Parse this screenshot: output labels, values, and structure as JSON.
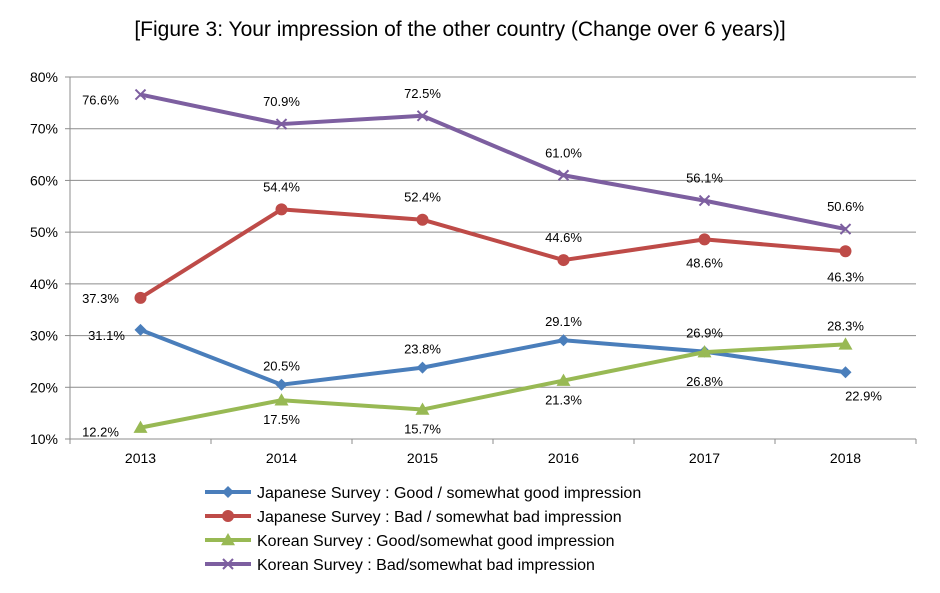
{
  "chart_data": {
    "type": "line",
    "title": "[Figure 3: Your impression of the other country (Change over 6 years)]",
    "xlabel": "",
    "ylabel": "",
    "categories": [
      "2013",
      "2014",
      "2015",
      "2016",
      "2017",
      "2018"
    ],
    "y_ticks": [
      "10%",
      "20%",
      "30%",
      "40%",
      "50%",
      "60%",
      "70%",
      "80%"
    ],
    "ylim": [
      10,
      80
    ],
    "grid": true,
    "legend_position": "bottom",
    "series": [
      {
        "name": "Japanese Survey : Good / somewhat good impression",
        "values": [
          31.1,
          20.5,
          23.8,
          29.1,
          26.9,
          22.9
        ],
        "labels": [
          "31.1%",
          "20.5%",
          "23.8%",
          "29.1%",
          "26.9%",
          "22.9%"
        ],
        "color": "#4a7ebb",
        "marker": "diamond"
      },
      {
        "name": "Japanese Survey : Bad / somewhat bad impression",
        "values": [
          37.3,
          54.4,
          52.4,
          44.6,
          48.6,
          46.3
        ],
        "labels": [
          "37.3%",
          "54.4%",
          "52.4%",
          "44.6%",
          "48.6%",
          "46.3%"
        ],
        "color": "#be4b48",
        "marker": "circle"
      },
      {
        "name": "Korean Survey : Good/somewhat good impression",
        "values": [
          12.2,
          17.5,
          15.7,
          21.3,
          26.8,
          28.3
        ],
        "labels": [
          "12.2%",
          "17.5%",
          "15.7%",
          "21.3%",
          "26.8%",
          "28.3%"
        ],
        "color": "#98b954",
        "marker": "triangle"
      },
      {
        "name": "Korean Survey : Bad/somewhat bad impression",
        "values": [
          76.6,
          70.9,
          72.5,
          61.0,
          56.1,
          50.6
        ],
        "labels": [
          "76.6%",
          "70.9%",
          "72.5%",
          "61.0%",
          "56.1%",
          "50.6%"
        ],
        "color": "#7d5fa0",
        "marker": "x"
      }
    ]
  }
}
